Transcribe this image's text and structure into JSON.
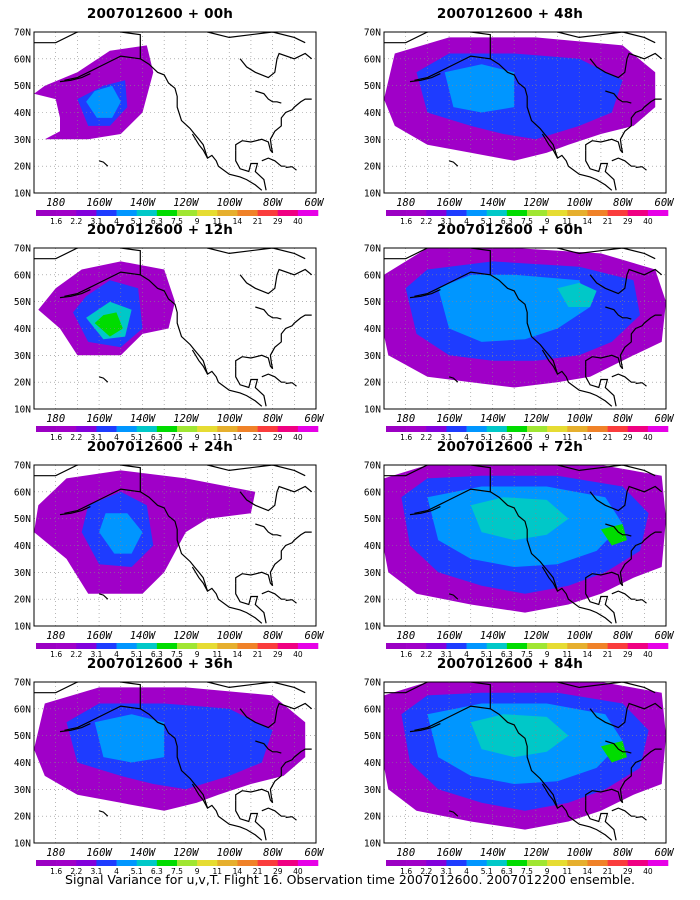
{
  "panels": [
    {
      "title": "2007012600 + 00h",
      "level": 0
    },
    {
      "title": "2007012600 + 48h",
      "level": 3
    },
    {
      "title": "2007012600 + 12h",
      "level": 1
    },
    {
      "title": "2007012600 + 60h",
      "level": 4
    },
    {
      "title": "2007012600 + 24h",
      "level": 2
    },
    {
      "title": "2007012600 + 72h",
      "level": 5
    },
    {
      "title": "2007012600 + 36h",
      "level": 3
    },
    {
      "title": "2007012600 + 84h",
      "level": 5
    }
  ],
  "lat_labels": [
    "70N",
    "60N",
    "50N",
    "40N",
    "30N",
    "20N",
    "10N"
  ],
  "lon_labels": [
    "180",
    "160W",
    "140W",
    "120W",
    "100W",
    "80W",
    "60W"
  ],
  "colorbar": {
    "labels": [
      "1.6",
      "2.2",
      "3.1",
      "4",
      "5.1",
      "6.3",
      "7.5",
      "9",
      "11",
      "14",
      "21",
      "29",
      "40"
    ],
    "colors": [
      "#a000c8",
      "#8200dc",
      "#1e3cff",
      "#0096ff",
      "#00c8c8",
      "#00dc00",
      "#a0e632",
      "#e6dc32",
      "#e6af2d",
      "#f08228",
      "#fa3c3c",
      "#f00082",
      "#e600e6"
    ]
  },
  "caption": "Signal Variance for u,v,T. Flight 16. Observation time 2007012600. 2007012200 ensemble."
}
